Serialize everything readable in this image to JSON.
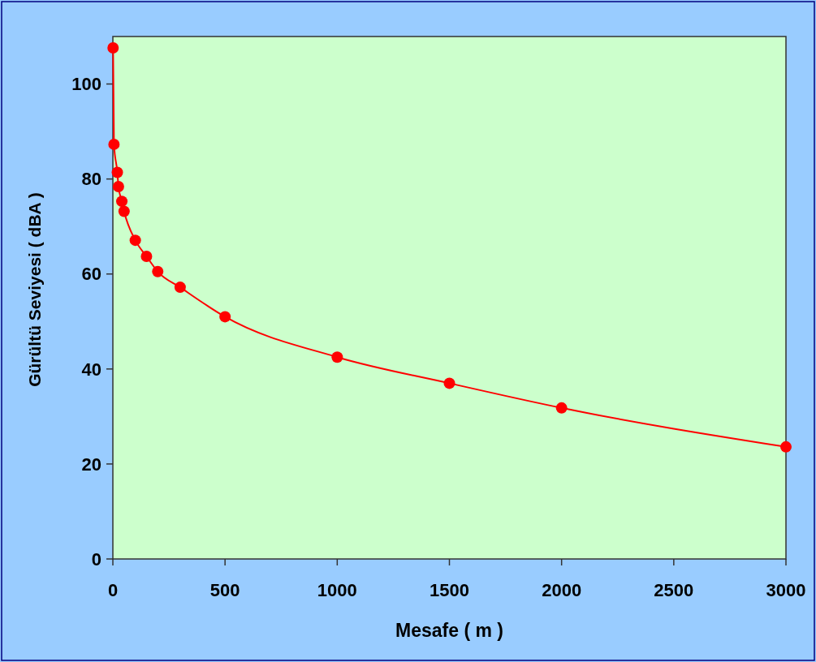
{
  "chart_data": {
    "type": "line",
    "xlabel": "Mesafe ( m )",
    "ylabel": "Gürültü Seviyesi ( dBA )",
    "x": [
      1,
      5,
      20,
      25,
      40,
      50,
      100,
      150,
      200,
      300,
      500,
      1000,
      1500,
      2000,
      3000
    ],
    "series": [
      {
        "color": "#ff0000",
        "values": [
          107.6,
          87.3,
          81.4,
          78.4,
          75.3,
          73.2,
          67.1,
          63.7,
          60.5,
          57.2,
          51.0,
          42.5,
          37.0,
          31.8,
          23.6
        ]
      }
    ],
    "xlim": [
      0,
      3000
    ],
    "xticks": [
      0,
      500,
      1000,
      1500,
      2000,
      2500,
      3000
    ],
    "ylim": [
      0,
      110
    ],
    "yticks": [
      0,
      20,
      40,
      60,
      80,
      100
    ],
    "marker": "circle",
    "line_style": "solid"
  }
}
